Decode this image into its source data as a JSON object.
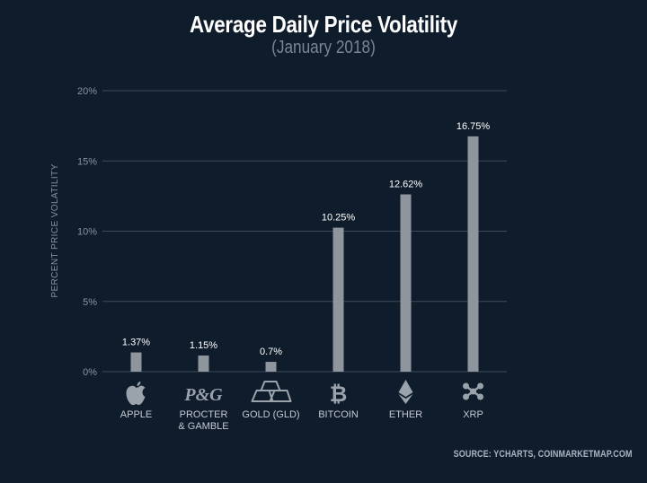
{
  "chart_data": {
    "type": "bar",
    "title": "Average Daily Price Volatility",
    "subtitle": "(January 2018)",
    "ylabel": "PERCENT PRICE VOLATILITY",
    "xlabel": "",
    "ylim": [
      0,
      20
    ],
    "yticks": [
      0,
      5,
      10,
      15,
      20
    ],
    "ytick_labels": [
      "0%",
      "5%",
      "10%",
      "15%",
      "20%"
    ],
    "categories": [
      {
        "label": "APPLE",
        "icon": "apple-icon"
      },
      {
        "label": "PROCTER\n& GAMBLE",
        "icon": "pg-logo-icon"
      },
      {
        "label": "GOLD (GLD)",
        "icon": "gold-bars-icon"
      },
      {
        "label": "BITCOIN",
        "icon": "bitcoin-icon"
      },
      {
        "label": "ETHER",
        "icon": "ether-icon"
      },
      {
        "label": "XRP",
        "icon": "xrp-icon"
      }
    ],
    "values": [
      1.37,
      1.15,
      0.7,
      10.25,
      12.62,
      16.75
    ],
    "data_labels": [
      "1.37%",
      "1.15%",
      "0.7%",
      "10.25%",
      "12.62%",
      "16.75%"
    ],
    "grid": true,
    "colors": {
      "background": "#0f1c2b",
      "bar": "#8f959c",
      "grid": "#3d4a5a",
      "text": "#ffffff",
      "muted": "#8a939f"
    }
  },
  "source": "SOURCE: YCHARTS, COINMARKETMAP.COM",
  "pg_logo_text": "P&G"
}
